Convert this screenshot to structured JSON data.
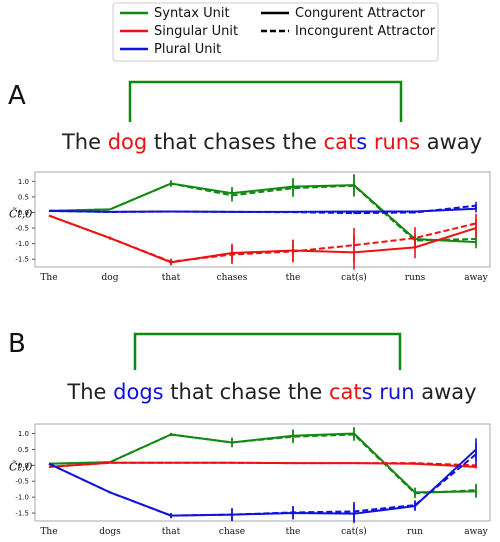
{
  "legend": {
    "items": [
      {
        "label": "Syntax Unit",
        "color": "#118811",
        "style": "solid"
      },
      {
        "label": "Singular Unit",
        "color": "#ee1111",
        "style": "solid"
      },
      {
        "label": "Plural Unit",
        "color": "#1111dd",
        "style": "solid"
      },
      {
        "label": "Congurent Attractor",
        "color": "#000000",
        "style": "solid"
      },
      {
        "label": "Incongurent Attractor",
        "color": "#000000",
        "style": "dashed"
      }
    ]
  },
  "colors": {
    "syntax": "#118811",
    "singular": "#ee1111",
    "plural": "#1111dd",
    "text": "#222222"
  },
  "panels": [
    {
      "letter": "A",
      "sentence": [
        {
          "text": "The ",
          "color": "#222222"
        },
        {
          "text": "dog",
          "color": "#ee1111"
        },
        {
          "text": " that chases the ",
          "color": "#222222"
        },
        {
          "text": "cat",
          "color": "#ee1111"
        },
        {
          "text": "s",
          "color": "#1111dd"
        },
        {
          "text": " runs",
          "color": "#ee1111"
        },
        {
          "text": " away",
          "color": "#222222"
        }
      ]
    },
    {
      "letter": "B",
      "sentence": [
        {
          "text": "The ",
          "color": "#222222"
        },
        {
          "text": "dogs",
          "color": "#1111dd"
        },
        {
          "text": " that chase the ",
          "color": "#222222"
        },
        {
          "text": "cat",
          "color": "#ee1111"
        },
        {
          "text": "s",
          "color": "#1111dd"
        },
        {
          "text": " run",
          "color": "#1111dd"
        },
        {
          "text": " away",
          "color": "#222222"
        }
      ]
    }
  ],
  "chart_data": [
    {
      "type": "line",
      "ylabel": "C̃t,0",
      "categories": [
        "The",
        "dog",
        "that",
        "chases",
        "the",
        "cat(s)",
        "runs",
        "away"
      ],
      "ylim": [
        -1.75,
        1.3
      ],
      "yticks": [
        1.0,
        0.5,
        0.0,
        -0.5,
        -1.0,
        -1.5
      ],
      "series": [
        {
          "unit": "syntax",
          "attractor": "congruent",
          "color": "#118811",
          "dash": false,
          "values": [
            0.05,
            0.1,
            0.93,
            0.62,
            0.83,
            0.88,
            -0.85,
            -0.95
          ],
          "errors": [
            0.0,
            0.02,
            0.1,
            0.2,
            0.28,
            0.35,
            0.15,
            0.2
          ]
        },
        {
          "unit": "syntax",
          "attractor": "incongruent",
          "color": "#118811",
          "dash": true,
          "values": [
            0.05,
            0.1,
            0.93,
            0.55,
            0.78,
            0.86,
            -0.9,
            -0.85
          ],
          "errors": [
            0.0,
            0.02,
            0.1,
            0.2,
            0.28,
            0.35,
            0.15,
            0.2
          ]
        },
        {
          "unit": "singular",
          "attractor": "congruent",
          "color": "#ee1111",
          "dash": false,
          "values": [
            -0.1,
            -0.82,
            -1.6,
            -1.3,
            -1.22,
            -1.28,
            -1.12,
            -0.5
          ],
          "errors": [
            0.0,
            0.05,
            0.1,
            0.3,
            0.35,
            0.55,
            0.35,
            0.3
          ]
        },
        {
          "unit": "singular",
          "attractor": "incongruent",
          "color": "#ee1111",
          "dash": true,
          "values": [
            -0.1,
            -0.82,
            -1.58,
            -1.35,
            -1.25,
            -1.05,
            -0.82,
            -0.35
          ],
          "errors": [
            0.0,
            0.05,
            0.1,
            0.3,
            0.35,
            0.55,
            0.35,
            0.3
          ]
        },
        {
          "unit": "plural",
          "attractor": "congruent",
          "color": "#1111dd",
          "dash": false,
          "values": [
            0.05,
            0.02,
            0.03,
            0.02,
            0.02,
            0.03,
            0.03,
            0.12
          ],
          "errors": [
            0.0,
            0.0,
            0.0,
            0.0,
            0.0,
            0.03,
            0.03,
            0.12
          ]
        },
        {
          "unit": "plural",
          "attractor": "incongruent",
          "color": "#1111dd",
          "dash": true,
          "values": [
            0.05,
            0.02,
            0.03,
            0.02,
            0.01,
            -0.02,
            0.0,
            0.22
          ],
          "errors": [
            0.0,
            0.0,
            0.0,
            0.0,
            0.0,
            0.03,
            0.03,
            0.12
          ]
        }
      ]
    },
    {
      "type": "line",
      "ylabel": "C̃t,0",
      "categories": [
        "The",
        "dogs",
        "that",
        "chase",
        "the",
        "cat(s)",
        "run",
        "away"
      ],
      "ylim": [
        -1.75,
        1.3
      ],
      "yticks": [
        1.0,
        0.5,
        0.0,
        -0.5,
        -1.0,
        -1.5
      ],
      "series": [
        {
          "unit": "syntax",
          "attractor": "congruent",
          "color": "#118811",
          "dash": false,
          "values": [
            0.05,
            0.1,
            0.97,
            0.72,
            0.93,
            1.0,
            -0.85,
            -0.82
          ],
          "errors": [
            0.0,
            0.02,
            0.05,
            0.15,
            0.2,
            0.2,
            0.15,
            0.2
          ]
        },
        {
          "unit": "syntax",
          "attractor": "incongruent",
          "color": "#118811",
          "dash": true,
          "values": [
            0.05,
            0.1,
            0.97,
            0.72,
            0.9,
            0.97,
            -0.88,
            -0.78
          ],
          "errors": [
            0.0,
            0.02,
            0.05,
            0.15,
            0.2,
            0.2,
            0.15,
            0.2
          ]
        },
        {
          "unit": "singular",
          "attractor": "congruent",
          "color": "#ee1111",
          "dash": false,
          "values": [
            -0.05,
            0.08,
            0.08,
            0.08,
            0.07,
            0.07,
            0.05,
            -0.05
          ],
          "errors": [
            0.0,
            0.0,
            0.0,
            0.0,
            0.0,
            0.0,
            0.03,
            0.05
          ]
        },
        {
          "unit": "singular",
          "attractor": "incongruent",
          "color": "#ee1111",
          "dash": true,
          "values": [
            -0.05,
            0.08,
            0.08,
            0.08,
            0.07,
            0.07,
            0.07,
            0.0
          ],
          "errors": [
            0.0,
            0.0,
            0.0,
            0.0,
            0.0,
            0.0,
            0.03,
            0.05
          ]
        },
        {
          "unit": "plural",
          "attractor": "congruent",
          "color": "#1111dd",
          "dash": false,
          "values": [
            0.05,
            -0.85,
            -1.58,
            -1.55,
            -1.5,
            -1.52,
            -1.28,
            0.5
          ],
          "errors": [
            0.0,
            0.03,
            0.08,
            0.2,
            0.2,
            0.3,
            0.15,
            0.35
          ]
        },
        {
          "unit": "plural",
          "attractor": "incongruent",
          "color": "#1111dd",
          "dash": true,
          "values": [
            0.05,
            -0.85,
            -1.58,
            -1.55,
            -1.48,
            -1.45,
            -1.25,
            0.35
          ],
          "errors": [
            0.0,
            0.03,
            0.08,
            0.2,
            0.2,
            0.3,
            0.15,
            0.35
          ]
        }
      ]
    }
  ]
}
